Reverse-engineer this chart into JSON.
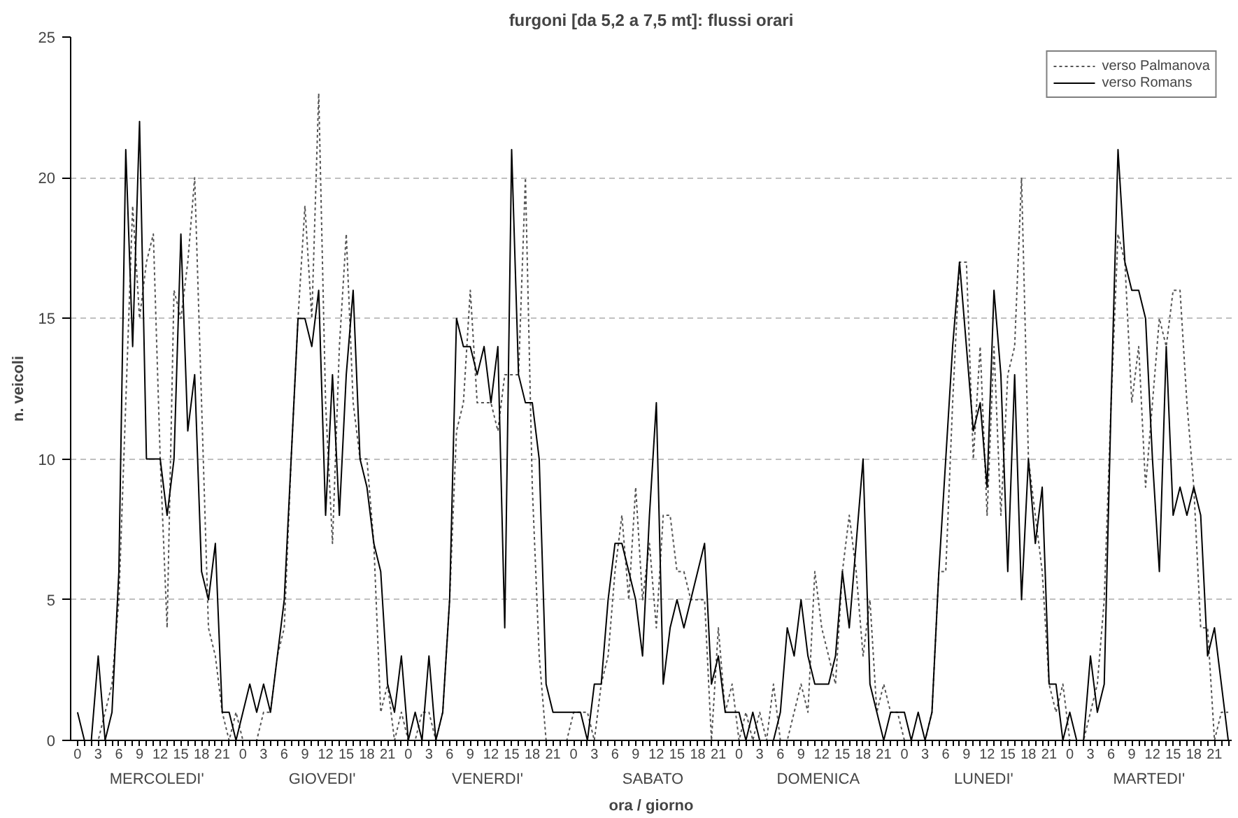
{
  "chart_data": {
    "type": "line",
    "title": "furgoni [da 5,2 a 7,5 mt]: flussi orari",
    "xlabel": "ora / giorno",
    "ylabel": "n. veicoli",
    "categories": [
      "0",
      null,
      null,
      "3",
      null,
      null,
      "6",
      null,
      null,
      "9",
      null,
      null,
      "12",
      null,
      null,
      "15",
      null,
      null,
      "18",
      null,
      null,
      "21",
      null,
      null,
      "0",
      null,
      null,
      "3",
      null,
      null,
      "6",
      null,
      null,
      "9",
      null,
      null,
      "12",
      null,
      null,
      "15",
      null,
      null,
      "18",
      null,
      null,
      "21",
      null,
      null,
      "0",
      null,
      null,
      "3",
      null,
      null,
      "6",
      null,
      null,
      "9",
      null,
      null,
      "12",
      null,
      null,
      "15",
      null,
      null,
      "18",
      null,
      null,
      "21",
      null,
      null,
      "0",
      null,
      null,
      "3",
      null,
      null,
      "6",
      null,
      null,
      "9",
      null,
      null,
      "12",
      null,
      null,
      "15",
      null,
      null,
      "18",
      null,
      null,
      "21",
      null,
      null,
      "0",
      null,
      null,
      "3",
      null,
      null,
      "6",
      null,
      null,
      "9",
      null,
      null,
      "12",
      null,
      null,
      "15",
      null,
      null,
      "18",
      null,
      null,
      "21",
      null,
      null,
      "0",
      null,
      null,
      "3",
      null,
      null,
      "6",
      null,
      null,
      "9",
      null,
      null,
      "12",
      null,
      null,
      "15",
      null,
      null,
      "18",
      null,
      null,
      "21",
      null,
      null,
      "0",
      null,
      null,
      "3",
      null,
      null,
      "6",
      null,
      null,
      "9",
      null,
      null,
      "12",
      null,
      null,
      "15",
      null,
      null,
      "18",
      null,
      null,
      "21",
      null,
      null
    ],
    "annotations": [
      "MERCOLEDI'",
      "GIOVEDI'",
      "VENERDI'",
      "SABATO",
      "DOMENICA",
      "LUNEDI'",
      "MARTEDI'"
    ],
    "series": [
      {
        "name": "verso Palmanova",
        "color": "#555555",
        "line_style": "dotted",
        "values": [
          0,
          0,
          0,
          0,
          1,
          2,
          5,
          12,
          19,
          15,
          17,
          18,
          10,
          4,
          16,
          15,
          17,
          20,
          12,
          4,
          3,
          1,
          0,
          1,
          0,
          0,
          0,
          1,
          1,
          3,
          4,
          10,
          15,
          19,
          15,
          23,
          12,
          7,
          14,
          18,
          12,
          10,
          10,
          7,
          1,
          2,
          0,
          1,
          0,
          0,
          1,
          1,
          0,
          1,
          5,
          11,
          12,
          16,
          12,
          12,
          12,
          11,
          13,
          13,
          13,
          20,
          9,
          3,
          0,
          0,
          0,
          0,
          1,
          1,
          1,
          0,
          2,
          3,
          6,
          8,
          5,
          9,
          5,
          7,
          4,
          8,
          8,
          6,
          6,
          5,
          5,
          5,
          0,
          4,
          1,
          2,
          0,
          1,
          0,
          1,
          0,
          2,
          0,
          0,
          1,
          2,
          1,
          6,
          4,
          3,
          2,
          6,
          8,
          6,
          3,
          5,
          1,
          2,
          1,
          1,
          0,
          0,
          0,
          0,
          1,
          6,
          6,
          12,
          17,
          17,
          10,
          14,
          8,
          14,
          8,
          13,
          14,
          20,
          10,
          8,
          6,
          2,
          1,
          2,
          0,
          0,
          0,
          1,
          2,
          5,
          12,
          18,
          17,
          12,
          14,
          9,
          12,
          15,
          14,
          16,
          16,
          12,
          9,
          4,
          4,
          0,
          1,
          1
        ]
      },
      {
        "name": "verso Romans",
        "color": "#000000",
        "line_style": "solid",
        "values": [
          1,
          0,
          0,
          3,
          0,
          1,
          6,
          21,
          14,
          22,
          10,
          10,
          10,
          8,
          10,
          18,
          11,
          13,
          6,
          5,
          7,
          1,
          1,
          0,
          1,
          2,
          1,
          2,
          1,
          3,
          5,
          10,
          15,
          15,
          14,
          16,
          8,
          13,
          8,
          13,
          16,
          10,
          9,
          7,
          6,
          2,
          1,
          3,
          0,
          1,
          0,
          3,
          0,
          1,
          5,
          15,
          14,
          14,
          13,
          14,
          12,
          14,
          4,
          21,
          13,
          12,
          12,
          10,
          2,
          1,
          1,
          1,
          1,
          1,
          0,
          2,
          2,
          5,
          7,
          7,
          6,
          5,
          3,
          8,
          12,
          2,
          4,
          5,
          4,
          5,
          6,
          7,
          2,
          3,
          1,
          1,
          1,
          0,
          1,
          0,
          0,
          0,
          1,
          4,
          3,
          5,
          3,
          2,
          2,
          2,
          3,
          6,
          4,
          7,
          10,
          2,
          1,
          0,
          1,
          1,
          1,
          0,
          1,
          0,
          1,
          6,
          10,
          14,
          17,
          14,
          11,
          12,
          9,
          16,
          13,
          6,
          13,
          5,
          10,
          7,
          9,
          2,
          2,
          0,
          1,
          0,
          0,
          3,
          1,
          2,
          12,
          21,
          17,
          16,
          16,
          15,
          10,
          6,
          14,
          8,
          9,
          8,
          9,
          8,
          3,
          4,
          2,
          0
        ]
      }
    ],
    "ylim": [
      0,
      25
    ],
    "yticks": [
      0,
      5,
      10,
      15,
      20,
      25
    ],
    "grid": "y",
    "legend": "top right"
  }
}
